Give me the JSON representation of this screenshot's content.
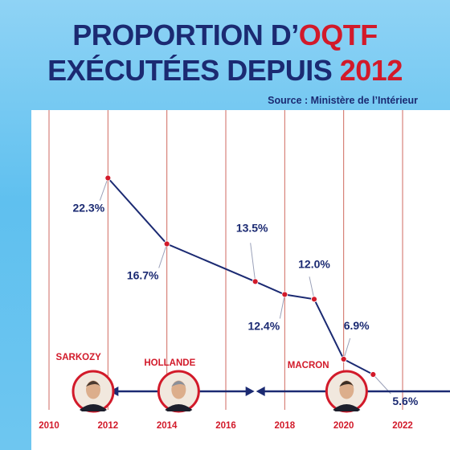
{
  "title": {
    "line1_prefix": "PROPORTION D’",
    "line1_highlight": "OQTF",
    "line2_prefix": "EXÉCUTÉES DEPUIS ",
    "line2_highlight": "2012"
  },
  "source": "Source : Ministère de l’Intérieur",
  "colors": {
    "title": "#1b2a72",
    "accent": "#d21a2a",
    "line": "#1b2a72",
    "gridline": "#c0392b",
    "background": "#6ec6f0"
  },
  "chart_data": {
    "type": "line",
    "title": "PROPORTION D’OQTF EXÉCUTÉES DEPUIS 2012",
    "xlabel": "",
    "ylabel": "",
    "xlim": [
      2010,
      2022
    ],
    "ylim": [
      0,
      25
    ],
    "x_ticks": [
      "2010",
      "2012",
      "2014",
      "2016",
      "2018",
      "2020",
      "2022"
    ],
    "grid": "vertical",
    "series": [
      {
        "values": [
          {
            "x": 2012,
            "y": 22.3,
            "label": "22.3%"
          },
          {
            "x": 2014,
            "y": 16.7,
            "label": "16.7%"
          },
          {
            "x": 2017,
            "y": 13.5,
            "label": "13.5%"
          },
          {
            "x": 2018,
            "y": 12.4,
            "label": "12.4%"
          },
          {
            "x": 2019,
            "y": 12.0,
            "label": "12.0%"
          },
          {
            "x": 2020,
            "y": 6.9,
            "label": "6.9%"
          },
          {
            "x": 2021,
            "y": 5.6,
            "label": "5.6%"
          }
        ]
      }
    ],
    "presidents": [
      {
        "name": "SARKOZY",
        "end": 2012
      },
      {
        "name": "HOLLANDE",
        "start": 2012,
        "end": 2017
      },
      {
        "name": "MACRON",
        "start": 2017
      }
    ]
  }
}
